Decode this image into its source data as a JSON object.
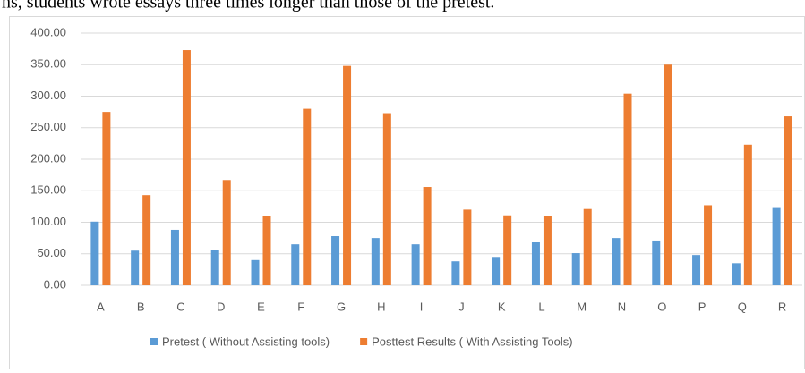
{
  "context_text": "ns, students wrote essays three times longer than those of the pretest.",
  "chart_data": {
    "type": "bar",
    "categories": [
      "A",
      "B",
      "C",
      "D",
      "E",
      "F",
      "G",
      "H",
      "I",
      "J",
      "K",
      "L",
      "M",
      "N",
      "O",
      "P",
      "Q",
      "R"
    ],
    "series": [
      {
        "name": "Pretest ( Without Assisting tools)",
        "color": "#5b9bd5",
        "values": [
          101,
          55,
          88,
          56,
          40,
          65,
          78,
          75,
          65,
          38,
          45,
          69,
          51,
          75,
          71,
          48,
          35,
          124
        ]
      },
      {
        "name": "Posttest Results ( With Assisting Tools)",
        "color": "#ed7d31",
        "values": [
          275,
          143,
          373,
          167,
          110,
          280,
          348,
          273,
          156,
          120,
          111,
          110,
          121,
          304,
          350,
          127,
          223,
          268
        ]
      }
    ],
    "ylim": [
      0,
      400
    ],
    "yticks": [
      {
        "value": 0,
        "label": "0.00"
      },
      {
        "value": 50,
        "label": "50.00"
      },
      {
        "value": 100,
        "label": "100.00"
      },
      {
        "value": 150,
        "label": "150.00"
      },
      {
        "value": 200,
        "label": "200.00"
      },
      {
        "value": 250,
        "label": "250.00"
      },
      {
        "value": 300,
        "label": "300.00"
      },
      {
        "value": 350,
        "label": "350.00"
      },
      {
        "value": 400,
        "label": "400.00"
      }
    ],
    "grid": true,
    "legend": "bottom"
  }
}
